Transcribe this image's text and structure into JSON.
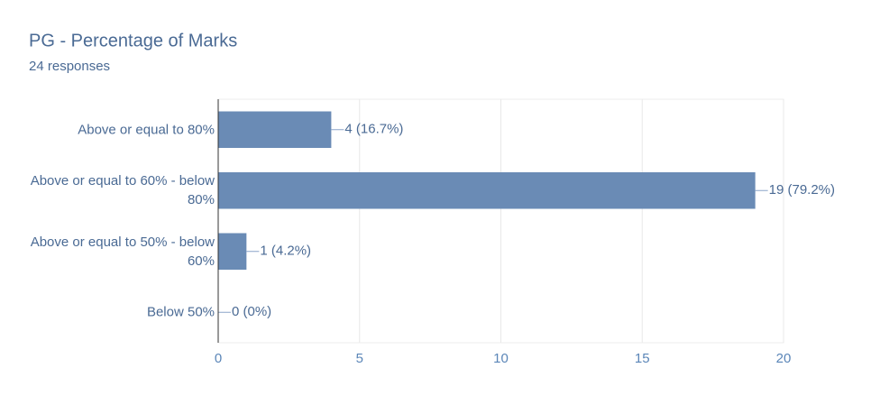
{
  "chart_data": {
    "type": "bar",
    "orientation": "horizontal",
    "title": "PG - Percentage of Marks",
    "subtitle": "24 responses",
    "categories": [
      "Above or equal to 80%",
      "Above or equal to 60% - below 80%",
      "Above or equal to 50% - below 60%",
      "Below 50%"
    ],
    "values": [
      4,
      19,
      1,
      0
    ],
    "value_labels": [
      "4 (16.7%)",
      "19 (79.2%)",
      "1 (4.2%)",
      "0 (0%)"
    ],
    "color": "#6a8bb5",
    "xlim": [
      0,
      20
    ],
    "xticks": [
      0,
      5,
      10,
      15,
      20
    ],
    "grid": true
  }
}
